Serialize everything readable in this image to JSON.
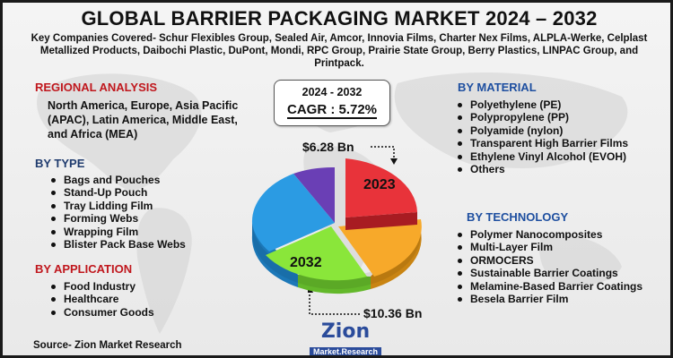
{
  "title": "GLOBAL BARRIER PACKAGING MARKET 2024 – 2032",
  "companies": "Key Companies Covered- Schur Flexibles Group, Sealed Air, Amcor, Innovia Films, Charter Nex Films, ALPLA-Werke, Celplast Metallized Products, Daibochi Plastic, DuPont, Mondi, RPC Group, Prairie State Group, Berry Plastics, LINPAC Group, and Printpack.",
  "regional": {
    "heading": "REGIONAL ANALYSIS",
    "text": "North America, Europe, Asia Pacific (APAC), Latin America, Middle East, and Africa (MEA)"
  },
  "by_type": {
    "heading": "BY TYPE",
    "items": [
      "Bags and Pouches",
      "Stand-Up Pouch",
      "Tray Lidding Film",
      "Forming Webs",
      "Wrapping Film",
      "Blister Pack Base Webs"
    ]
  },
  "by_application": {
    "heading": "BY APPLICATION",
    "items": [
      "Food Industry",
      "Healthcare",
      "Consumer Goods"
    ]
  },
  "by_material": {
    "heading": "BY MATERIAL",
    "items": [
      "Polyethylene (PE)",
      "Polypropylene (PP)",
      "Polyamide (nylon)",
      "Transparent High Barrier Films",
      "Ethylene Vinyl Alcohol (EVOH)",
      "Others"
    ]
  },
  "by_technology": {
    "heading": "BY TECHNOLOGY",
    "items": [
      "Polymer Nanocomposites",
      "Multi-Layer Film",
      "ORMOCERS",
      "Sustainable Barrier Coatings",
      "Melamine-Based Barrier Coatings",
      "Besela Barrier Film"
    ]
  },
  "cagr": {
    "years": "2024 - 2032",
    "value": "CAGR : 5.72%"
  },
  "value_2023": "$6.28 Bn",
  "value_2032": "$10.36 Bn",
  "pie": {
    "label_2023": "2023",
    "label_2032": "2032"
  },
  "source": "Source- Zion Market Research",
  "logo": {
    "main": "Zion",
    "sub": "Market.Research"
  },
  "colors": {
    "red": "#e8333a",
    "orange": "#f7a92a",
    "green": "#8ae63a",
    "blue": "#2b9be3",
    "purple": "#6a3fb5",
    "heading_red": "#c0171d",
    "heading_navy": "#1f3b6e"
  }
}
